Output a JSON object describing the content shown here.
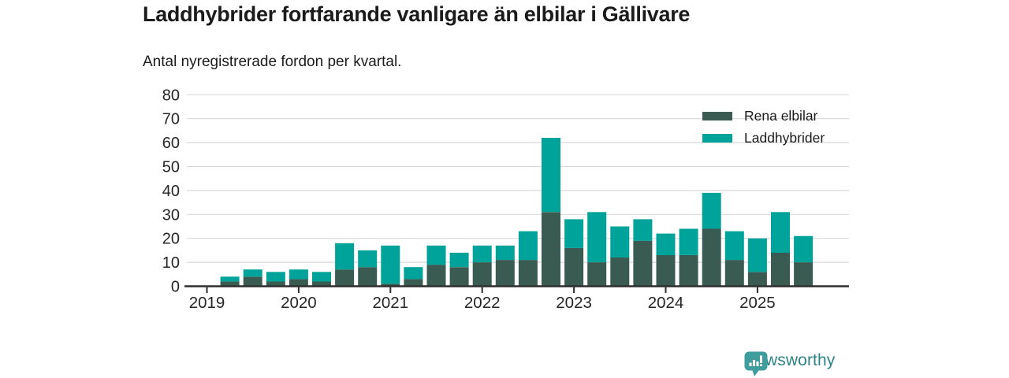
{
  "chart_data": {
    "type": "stacked_bar",
    "title": "Laddhybrider fortfarande vanligare än elbilar i Gällivare",
    "subtitle": "Antal nyregistrerade fordon per kvartal.",
    "x": [
      "2019 Q2",
      "2019 Q3",
      "2019 Q4",
      "2020 Q1",
      "2020 Q2",
      "2020 Q3",
      "2020 Q4",
      "2021 Q1",
      "2021 Q2",
      "2021 Q3",
      "2021 Q4",
      "2022 Q1",
      "2022 Q2",
      "2022 Q3",
      "2022 Q4",
      "2023 Q1",
      "2023 Q2",
      "2023 Q3",
      "2023 Q4",
      "2024 Q1",
      "2024 Q2",
      "2024 Q3",
      "2024 Q4",
      "2025 Q1",
      "2025 Q2",
      "2025 Q3"
    ],
    "series": [
      {
        "name": "Rena elbilar",
        "color": "#3a5b52",
        "values": [
          2,
          4,
          2,
          3,
          2,
          7,
          8,
          1,
          3,
          9,
          8,
          10,
          11,
          11,
          31,
          16,
          10,
          12,
          19,
          13,
          13,
          24,
          11,
          6,
          14,
          10
        ]
      },
      {
        "name": "Laddhybrider",
        "color": "#00a39a",
        "values": [
          2,
          3,
          4,
          4,
          4,
          11,
          7,
          16,
          5,
          8,
          6,
          7,
          6,
          12,
          31,
          12,
          21,
          13,
          9,
          9,
          11,
          15,
          12,
          14,
          17,
          11
        ]
      }
    ],
    "stacked": true,
    "ylim": [
      0,
      80
    ],
    "yticks": [
      0,
      10,
      20,
      30,
      40,
      50,
      60,
      70,
      80
    ],
    "xticks": [
      "2019",
      "2020",
      "2021",
      "2022",
      "2023",
      "2024",
      "2025"
    ],
    "grid": "horizontal",
    "legend_position": "top-right",
    "colors": {
      "grid": "#d9d9d9",
      "axis": "#2e2e2e",
      "tick_text": "#262626"
    }
  },
  "footer": {
    "brand": "Newsworthy",
    "brand_color": "#2d8384",
    "icon_color": "#3f9e9d"
  }
}
